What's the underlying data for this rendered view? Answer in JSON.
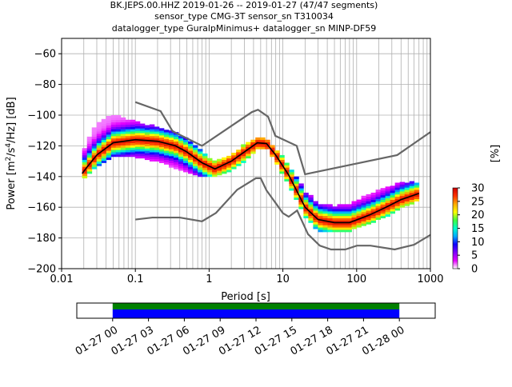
{
  "chart_data": {
    "type": "heatmap",
    "title_lines": [
      "BK.JEPS.00.HHZ   2019-01-26 -- 2019-01-27  (47/47 segments)",
      "sensor_type CMG-3T sensor_sn T310034",
      "datalogger_type GuralpMinimus+ datalogger_sn MINP-DF59"
    ],
    "xlabel": "Period [s]",
    "ylabel_parts": [
      "Power [m",
      "2",
      "/s",
      "4",
      "/Hz] [dB]"
    ],
    "xscale": "log",
    "xlim": [
      0.01,
      1000
    ],
    "ylim": [
      -200,
      -50
    ],
    "x_ticks": [
      {
        "value": 0.01,
        "label": "0.01"
      },
      {
        "value": 0.1,
        "label": "0.1"
      },
      {
        "value": 1,
        "label": "1"
      },
      {
        "value": 10,
        "label": "10"
      },
      {
        "value": 100,
        "label": "100"
      },
      {
        "value": 1000,
        "label": "1000"
      }
    ],
    "y_ticks": [
      {
        "value": -60,
        "label": "−60"
      },
      {
        "value": -80,
        "label": "−80"
      },
      {
        "value": -100,
        "label": "−100"
      },
      {
        "value": -120,
        "label": "−120"
      },
      {
        "value": -140,
        "label": "−140"
      },
      {
        "value": -160,
        "label": "−160"
      },
      {
        "value": -180,
        "label": "−180"
      },
      {
        "value": -200,
        "label": "−200"
      }
    ],
    "grid": true,
    "noise_models": {
      "high": [
        [
          0.1,
          -91.5
        ],
        [
          0.22,
          -97.4
        ],
        [
          0.32,
          -110.5
        ],
        [
          0.8,
          -120
        ],
        [
          3.8,
          -98
        ],
        [
          4.6,
          -96.5
        ],
        [
          6.3,
          -101
        ],
        [
          7.9,
          -113.5
        ],
        [
          15.4,
          -120
        ],
        [
          20,
          -138.5
        ],
        [
          354.8,
          -126
        ],
        [
          1000,
          -111
        ]
      ],
      "low": [
        [
          0.1,
          -168
        ],
        [
          0.17,
          -166.7
        ],
        [
          0.4,
          -166.7
        ],
        [
          0.8,
          -169.2
        ],
        [
          1.24,
          -163.7
        ],
        [
          2.4,
          -148.6
        ],
        [
          4.3,
          -141.1
        ],
        [
          5,
          -141.1
        ],
        [
          6,
          -149
        ],
        [
          10,
          -163.8
        ],
        [
          12,
          -166.2
        ],
        [
          15.6,
          -162.1
        ],
        [
          21.9,
          -177.5
        ],
        [
          31.6,
          -185
        ],
        [
          45,
          -187.5
        ],
        [
          70,
          -187.5
        ],
        [
          101,
          -185
        ],
        [
          154,
          -185
        ],
        [
          328,
          -187.5
        ],
        [
          600,
          -184.4
        ],
        [
          1000,
          -178
        ]
      ]
    },
    "mode_curve": [
      [
        0.019,
        -138
      ],
      [
        0.022,
        -134
      ],
      [
        0.03,
        -126
      ],
      [
        0.05,
        -118
      ],
      [
        0.1,
        -116
      ],
      [
        0.2,
        -117
      ],
      [
        0.35,
        -120
      ],
      [
        0.5,
        -124
      ],
      [
        0.8,
        -131
      ],
      [
        1.2,
        -135
      ],
      [
        2,
        -130
      ],
      [
        3,
        -124
      ],
      [
        4.5,
        -118
      ],
      [
        6,
        -118.5
      ],
      [
        8,
        -126
      ],
      [
        12,
        -139
      ],
      [
        20,
        -160
      ],
      [
        30,
        -168
      ],
      [
        50,
        -170
      ],
      [
        80,
        -170
      ],
      [
        150,
        -165
      ],
      [
        250,
        -160
      ],
      [
        400,
        -155
      ],
      [
        700,
        -151
      ]
    ],
    "psd_bands": [
      [
        0.019,
        -142,
        -126
      ],
      [
        0.022,
        -139,
        -118
      ],
      [
        0.03,
        -133,
        -106
      ],
      [
        0.05,
        -127,
        -100
      ],
      [
        0.1,
        -127,
        -105
      ],
      [
        0.2,
        -130,
        -108
      ],
      [
        0.35,
        -134,
        -112
      ],
      [
        0.5,
        -137,
        -116
      ],
      [
        0.8,
        -140,
        -124
      ],
      [
        1.2,
        -140,
        -131
      ],
      [
        2,
        -136,
        -126
      ],
      [
        3,
        -130,
        -120
      ],
      [
        4.5,
        -122,
        -115
      ],
      [
        6,
        -121,
        -116
      ],
      [
        8,
        -130,
        -122
      ],
      [
        12,
        -145,
        -133
      ],
      [
        20,
        -166,
        -150
      ],
      [
        30,
        -175,
        -158
      ],
      [
        50,
        -176,
        -160
      ],
      [
        80,
        -175,
        -158
      ],
      [
        150,
        -170,
        -152
      ],
      [
        250,
        -166,
        -148
      ],
      [
        400,
        -160,
        -144
      ],
      [
        700,
        -155,
        -144
      ]
    ],
    "colorbar": {
      "label": "[%]",
      "range": [
        0,
        30
      ],
      "ticks": [
        {
          "value": 0,
          "label": "0"
        },
        {
          "value": 5,
          "label": "5"
        },
        {
          "value": 10,
          "label": "10"
        },
        {
          "value": 15,
          "label": "15"
        },
        {
          "value": 20,
          "label": "20"
        },
        {
          "value": 25,
          "label": "25"
        },
        {
          "value": 30,
          "label": "30"
        }
      ],
      "colors": [
        "#ffffff",
        "#e600ff",
        "#7f00ff",
        "#1000ff",
        "#00aaff",
        "#00ffcc",
        "#40ff40",
        "#ffff00",
        "#ffaa00",
        "#ff3300",
        "#cc0000"
      ]
    },
    "timeline": {
      "tick_labels": [
        "01-27 00",
        "01-27 03",
        "01-27 06",
        "01-27 09",
        "01-27 12",
        "01-27 15",
        "01-27 18",
        "01-27 21",
        "01-28 00"
      ],
      "range_hours": [
        -3,
        27
      ],
      "coverage_hours": [
        0,
        24
      ],
      "colors": {
        "top": "#008000",
        "bottom": "#0000ff"
      }
    }
  }
}
